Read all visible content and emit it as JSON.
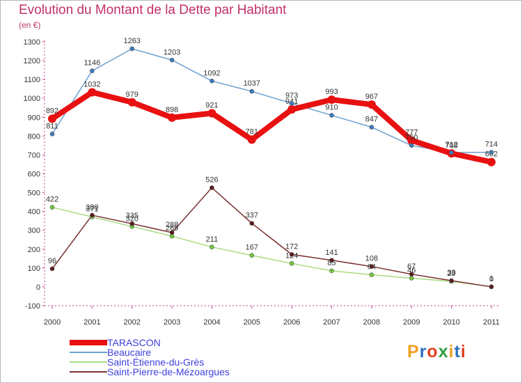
{
  "title": "Evolution du Montant de la Dette par Habitant",
  "subtitle": "(en €)",
  "logo": {
    "letters": [
      "P",
      "r",
      "o",
      "x",
      "i",
      "t",
      "i"
    ],
    "colors": [
      "#f0a020",
      "#3070c0",
      "#e04020",
      "#30a040",
      "#f0a020",
      "#3070c0",
      "#e04020"
    ]
  },
  "chart_data": {
    "type": "line",
    "x": [
      "2000",
      "2001",
      "2002",
      "2003",
      "2004",
      "2005",
      "2006",
      "2007",
      "2008",
      "2009",
      "2010",
      "2011"
    ],
    "ylim": [
      -100,
      1300
    ],
    "yticks": [
      "-100",
      "0",
      "100",
      "200",
      "300",
      "400",
      "500",
      "600",
      "700",
      "800",
      "900",
      "1000",
      "1100",
      "1200",
      "1300"
    ],
    "grid": false,
    "legend_position": "bottom-left",
    "series": [
      {
        "name": "TARASCON",
        "color": "#e81010",
        "marker": "#e81010",
        "width": 8,
        "values": [
          892,
          1032,
          979,
          898,
          921,
          781,
          941,
          993,
          967,
          777,
          708,
          662
        ],
        "labels": [
          "892",
          "1032",
          "979",
          "898",
          "921",
          "781",
          "941",
          "993",
          "967",
          "777",
          "708",
          "662"
        ]
      },
      {
        "name": "Beaucaire",
        "color": "#6ea0d0",
        "marker": "#3a7cc0",
        "width": 1.5,
        "values": [
          811,
          1146,
          1263,
          1203,
          1092,
          1037,
          973,
          910,
          847,
          750,
          712,
          714
        ],
        "labels": [
          "811",
          "1146",
          "1263",
          "1203",
          "1092",
          "1037",
          "973",
          "910",
          "847",
          "750",
          "712",
          "714"
        ]
      },
      {
        "name": "Saint-Étienne-du-Grès",
        "color": "#a8dc80",
        "marker": "#70c840",
        "width": 1.5,
        "values": [
          422,
          371,
          320,
          269,
          211,
          167,
          124,
          85,
          64,
          46,
          29,
          1
        ],
        "labels": [
          "422",
          "371",
          "320",
          "269",
          "211",
          "167",
          "124",
          "85",
          "64",
          "46",
          "29",
          "1"
        ]
      },
      {
        "name": "Saint-Pierre-de-Mézoargues",
        "color": "#7a3030",
        "marker": "#5a1a1a",
        "width": 1.5,
        "values": [
          96,
          380,
          335,
          288,
          526,
          337,
          172,
          141,
          108,
          67,
          33,
          0
        ],
        "labels": [
          "96",
          "380",
          "335",
          "288",
          "526",
          "337",
          "172",
          "141",
          "108",
          "67",
          "33",
          "0"
        ]
      }
    ]
  }
}
